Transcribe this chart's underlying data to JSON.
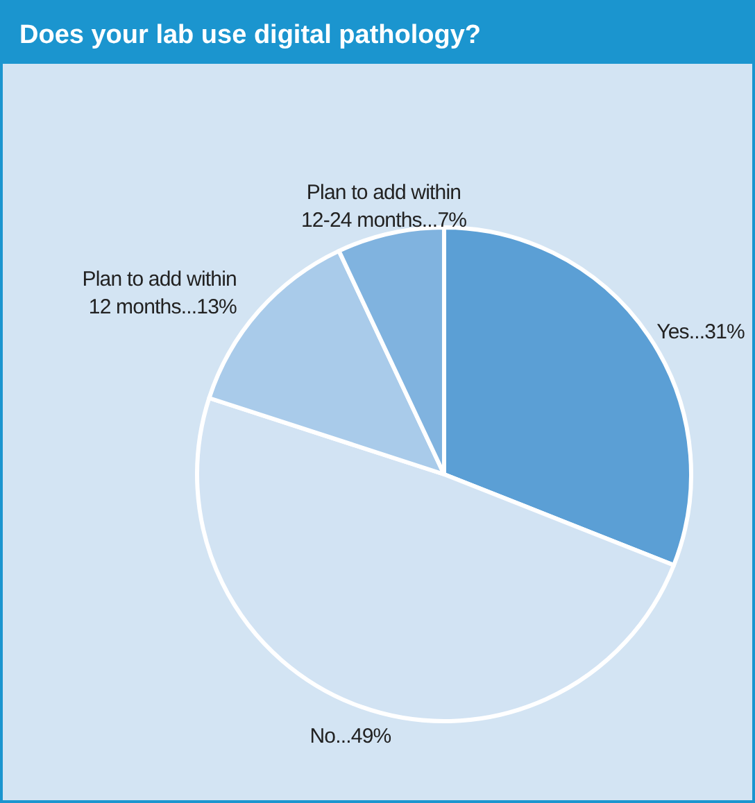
{
  "chart_data": {
    "type": "pie",
    "title": "Does your lab use digital pathology?",
    "categories": [
      "Yes...",
      "No...",
      "Plan to add within 12 months...",
      "Plan to add within 12-24 months..."
    ],
    "values": [
      31,
      49,
      13,
      7
    ],
    "value_labels": [
      "31%",
      "49%",
      "13%",
      "7%"
    ],
    "colors": [
      "#5b9fd5",
      "#d2e3f3",
      "#a9cbea",
      "#80b3df"
    ]
  }
}
